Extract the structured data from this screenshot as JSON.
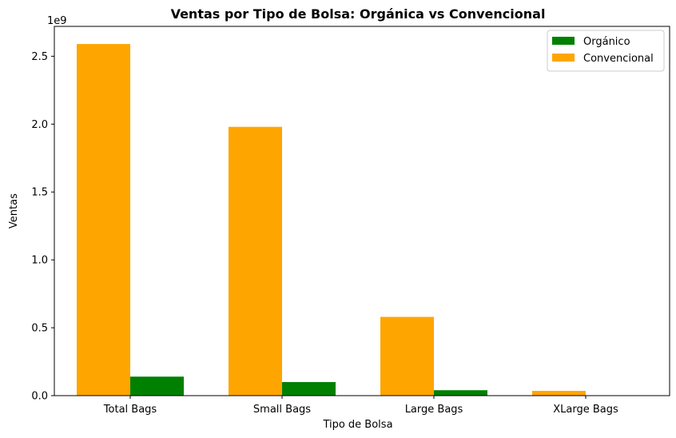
{
  "chart_data": {
    "type": "bar",
    "title": "Ventas por Tipo de Bolsa: Orgánica vs Convencional",
    "xlabel": "Tipo de Bolsa",
    "ylabel": "Ventas",
    "offset_text": "1e9",
    "categories": [
      "Total Bags",
      "Small Bags",
      "Large Bags",
      "XLarge Bags"
    ],
    "series": [
      {
        "name": "Orgánico",
        "color": "#008000",
        "values": [
          0.14,
          0.1,
          0.04,
          0.001
        ]
      },
      {
        "name": "Convencional",
        "color": "#FFA500",
        "values": [
          2.59,
          1.98,
          0.58,
          0.035
        ]
      }
    ],
    "ylim": [
      0,
      2.72
    ],
    "yticks": [
      "0.0",
      "0.5",
      "1.0",
      "1.5",
      "2.0",
      "2.5"
    ],
    "ytick_values": [
      0,
      0.5,
      1.0,
      1.5,
      2.0,
      2.5
    ],
    "grid": false,
    "legend_position": "top-right"
  }
}
